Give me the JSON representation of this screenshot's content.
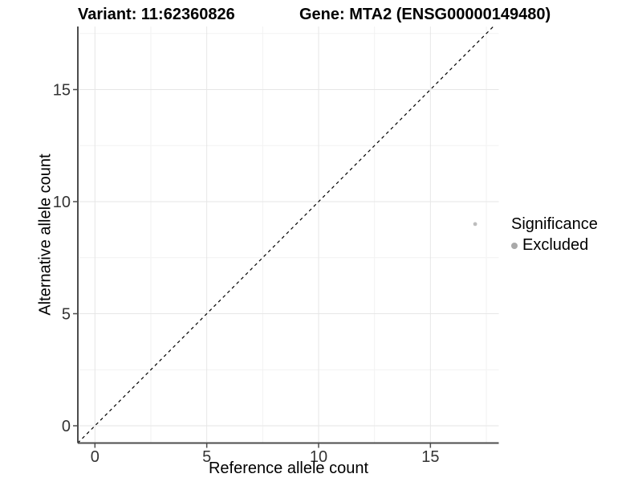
{
  "title": {
    "left": "Variant: 11:62360826",
    "right": "Gene: MTA2 (ENSG00000149480)"
  },
  "axes": {
    "x_label": "Reference allele count",
    "y_label": "Alternative allele count"
  },
  "legend": {
    "title": "Significance",
    "items": [
      {
        "label": "Excluded",
        "marker": "circle",
        "color": "#a9a9a9"
      }
    ]
  },
  "chart_data": {
    "type": "scatter",
    "title": "Variant: 11:62360826 — Gene: MTA2 (ENSG00000149480)",
    "xlabel": "Reference allele count",
    "ylabel": "Alternative allele count",
    "xlim": [
      -0.77,
      18.06
    ],
    "ylim": [
      -0.77,
      17.82
    ],
    "x_ticks": [
      0,
      5,
      10,
      15
    ],
    "y_ticks": [
      0,
      5,
      10,
      15
    ],
    "x_minor_ticks": [
      2.5,
      7.5,
      12.5,
      17.5
    ],
    "y_minor_ticks": [
      2.5,
      7.5,
      12.5,
      17.5
    ],
    "grid": "major+minor",
    "legend_position": "right",
    "series": [
      {
        "name": "Excluded",
        "color": "#bdbdbd",
        "points": [
          {
            "x": 17,
            "y": 9
          }
        ]
      }
    ],
    "reference_line": {
      "type": "identity",
      "equation": "y = x",
      "style": "dashed",
      "color": "#000000"
    }
  },
  "style": {
    "background": "#ffffff",
    "grid_major_color": "#e6e6e6",
    "grid_minor_color": "#f2f2f2",
    "axis_line_color": "#4d4d4d",
    "tick_label_color": "#333333",
    "point_color": "#bdbdbd",
    "legend_dot_color": "#a9a9a9"
  }
}
